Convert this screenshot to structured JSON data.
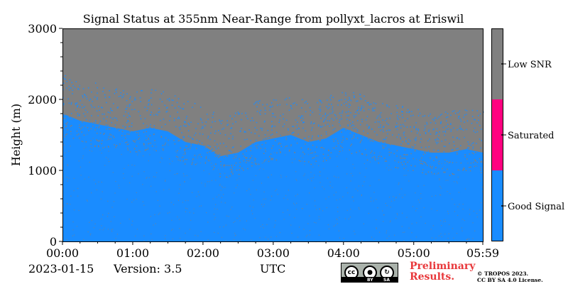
{
  "chart_data": {
    "type": "heatmap",
    "title": "Signal Status at 355nm Near-Range from pollyxt_lacros at Eriswil",
    "ylabel": "Height (m)",
    "xlabel": "UTC",
    "x_ticks": [
      "00:00",
      "01:00",
      "02:00",
      "03:00",
      "04:00",
      "05:00",
      "05:59"
    ],
    "x_range_hours": [
      0,
      5.983
    ],
    "y_ticks": [
      "0",
      "1000",
      "2000",
      "3000"
    ],
    "ylim": [
      0,
      3000
    ],
    "categories": [
      "Good Signal",
      "Saturated",
      "Low SNR"
    ],
    "category_colors": [
      "#1a8cff",
      "#ff0080",
      "#808080"
    ],
    "colorbar_labels": [
      "Good Signal",
      "Saturated",
      "Low SNR"
    ],
    "signal_boundary": {
      "time_hours": [
        0.0,
        0.25,
        0.5,
        0.75,
        1.0,
        1.25,
        1.5,
        1.75,
        2.0,
        2.25,
        2.5,
        2.75,
        3.0,
        3.25,
        3.5,
        3.75,
        4.0,
        4.25,
        4.5,
        4.75,
        5.0,
        5.25,
        5.5,
        5.75,
        5.983
      ],
      "height_m": [
        1800,
        1700,
        1650,
        1600,
        1550,
        1600,
        1550,
        1400,
        1350,
        1200,
        1250,
        1400,
        1450,
        1500,
        1400,
        1450,
        1600,
        1500,
        1400,
        1350,
        1300,
        1250,
        1250,
        1300,
        1250
      ]
    }
  },
  "footer": {
    "date": "2023-01-15",
    "version": "Version: 3.5",
    "preliminary_line1": "Preliminary",
    "preliminary_line2": "Results.",
    "copyright_line1": "© TROPOS 2023.",
    "copyright_line2": "CC BY SA 4.0 License.",
    "cc_labels": [
      "cc",
      "BY",
      "SA"
    ]
  }
}
